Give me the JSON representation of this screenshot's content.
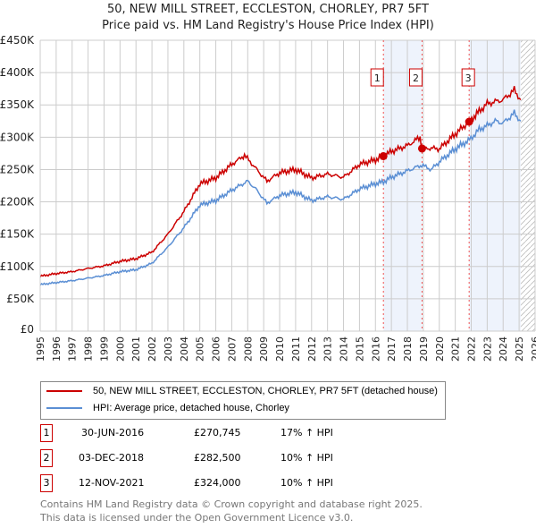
{
  "title": "50, NEW MILL STREET, ECCLESTON, CHORLEY, PR7 5FT",
  "subtitle": "Price paid vs. HM Land Registry's House Price Index (HPI)",
  "chart_data": {
    "type": "line",
    "xlim": [
      1995,
      2026
    ],
    "ylim": [
      0,
      450000
    ],
    "x_ticks": [
      "1995",
      "1996",
      "1997",
      "1998",
      "1999",
      "2000",
      "2001",
      "2002",
      "2003",
      "2004",
      "2005",
      "2006",
      "2007",
      "2008",
      "2009",
      "2010",
      "2011",
      "2012",
      "2013",
      "2014",
      "2015",
      "2016",
      "2017",
      "2018",
      "2019",
      "2020",
      "2021",
      "2022",
      "2023",
      "2024",
      "2025",
      "2026"
    ],
    "y_ticks": [
      {
        "v": 0,
        "label": "£0"
      },
      {
        "v": 50000,
        "label": "£50K"
      },
      {
        "v": 100000,
        "label": "£100K"
      },
      {
        "v": 150000,
        "label": "£150K"
      },
      {
        "v": 200000,
        "label": "£200K"
      },
      {
        "v": 250000,
        "label": "£250K"
      },
      {
        "v": 300000,
        "label": "£300K"
      },
      {
        "v": 350000,
        "label": "£350K"
      },
      {
        "v": 400000,
        "label": "£400K"
      },
      {
        "v": 450000,
        "label": "£450K"
      }
    ],
    "grid": true,
    "series": [
      {
        "name": "50, NEW MILL STREET, ECCLESTON, CHORLEY, PR7 5FT (detached house)",
        "color": "#cc0000",
        "points": [
          [
            1995,
            85
          ],
          [
            1996,
            89
          ],
          [
            1997,
            92
          ],
          [
            1998,
            97
          ],
          [
            1999,
            101
          ],
          [
            2000,
            108
          ],
          [
            2001,
            112
          ],
          [
            2002,
            122
          ],
          [
            2003,
            150
          ],
          [
            2004,
            185
          ],
          [
            2005,
            228
          ],
          [
            2006,
            237
          ],
          [
            2007,
            258
          ],
          [
            2007.8,
            272
          ],
          [
            2008.5,
            252
          ],
          [
            2009.2,
            232
          ],
          [
            2010,
            245
          ],
          [
            2011,
            250
          ],
          [
            2012,
            237
          ],
          [
            2013,
            243
          ],
          [
            2014,
            238
          ],
          [
            2015,
            258
          ],
          [
            2016,
            265
          ],
          [
            2016.5,
            270.7
          ],
          [
            2017,
            278
          ],
          [
            2018,
            287
          ],
          [
            2018.8,
            300
          ],
          [
            2018.92,
            282.5
          ],
          [
            2019.5,
            283
          ],
          [
            2020,
            282
          ],
          [
            2021,
            305
          ],
          [
            2021.87,
            324
          ],
          [
            2022.5,
            340
          ],
          [
            2023,
            352
          ],
          [
            2023.5,
            355
          ],
          [
            2024,
            358
          ],
          [
            2024.7,
            373
          ],
          [
            2025.1,
            358
          ]
        ]
      },
      {
        "name": "HPI: Average price, detached house, Chorley",
        "color": "#5b8fd4",
        "points": [
          [
            1995,
            72
          ],
          [
            1996,
            75
          ],
          [
            1997,
            78
          ],
          [
            1998,
            82
          ],
          [
            1999,
            86
          ],
          [
            2000,
            92
          ],
          [
            2001,
            95
          ],
          [
            2002,
            105
          ],
          [
            2003,
            130
          ],
          [
            2004,
            160
          ],
          [
            2005,
            195
          ],
          [
            2006,
            202
          ],
          [
            2007,
            218
          ],
          [
            2008,
            232
          ],
          [
            2008.5,
            220
          ],
          [
            2009.2,
            198
          ],
          [
            2010,
            210
          ],
          [
            2011,
            215
          ],
          [
            2012,
            202
          ],
          [
            2013,
            208
          ],
          [
            2014,
            204
          ],
          [
            2015,
            220
          ],
          [
            2016,
            228
          ],
          [
            2016.5,
            231
          ],
          [
            2017,
            238
          ],
          [
            2018,
            248
          ],
          [
            2018.9,
            257
          ],
          [
            2019.5,
            250
          ],
          [
            2020,
            262
          ],
          [
            2021,
            282
          ],
          [
            2021.9,
            296
          ],
          [
            2022.5,
            312
          ],
          [
            2023,
            318
          ],
          [
            2023.5,
            325
          ],
          [
            2024,
            322
          ],
          [
            2024.7,
            337
          ],
          [
            2025.1,
            325
          ]
        ]
      }
    ],
    "sales": [
      {
        "n": "1",
        "x": 2016.5,
        "y": 270.745
      },
      {
        "n": "2",
        "x": 2018.92,
        "y": 282.5
      },
      {
        "n": "3",
        "x": 2021.87,
        "y": 324
      }
    ],
    "shaded": [
      [
        2016.5,
        2018.92
      ],
      [
        2021.87,
        2025.1
      ]
    ],
    "forecast_start": 2025.1
  },
  "legend": {
    "red": "50, NEW MILL STREET, ECCLESTON, CHORLEY, PR7 5FT (detached house)",
    "blue": "HPI: Average price, detached house, Chorley"
  },
  "transactions": [
    {
      "n": "1",
      "date": "30-JUN-2016",
      "price": "£270,745",
      "hpi": "17% ↑ HPI"
    },
    {
      "n": "2",
      "date": "03-DEC-2018",
      "price": "£282,500",
      "hpi": "10% ↑ HPI"
    },
    {
      "n": "3",
      "date": "12-NOV-2021",
      "price": "£324,000",
      "hpi": "10% ↑ HPI"
    }
  ],
  "footer": {
    "line1": "Contains HM Land Registry data © Crown copyright and database right 2025.",
    "line2": "This data is licensed under the Open Government Licence v3.0."
  }
}
